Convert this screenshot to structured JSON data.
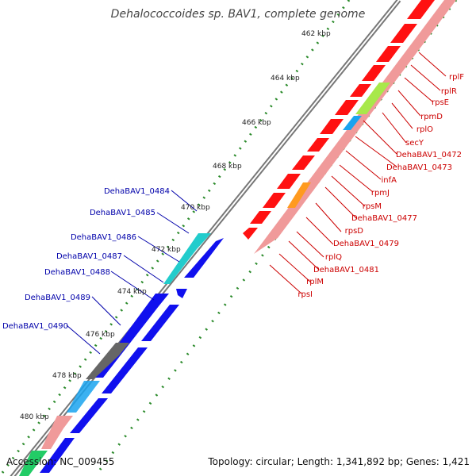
{
  "title": "Dehalococcoides sp. BAV1, complete genome",
  "footer": {
    "accession": "Accession: NC_009455",
    "summary": "Topology: circular; Length: 1,341,892 bp; Genes: 1,421"
  },
  "colors": {
    "ribosomal_protein": "#ff1111",
    "ribosomal_feature": "#f0a0a0",
    "secY": "#a8e84a",
    "hypothetical_blue": "#1aa3ef",
    "rpsD_feature": "#ff9a1f",
    "cds_blue": "#1010ee",
    "cds_cyan": "#22cccc",
    "cds_gray": "#666666",
    "label_red": "#cc0000",
    "label_blue": "#0000aa",
    "scale_green": "#2a8a2a",
    "backbone": "#888888"
  },
  "scale_ticks": [
    "462 kbp",
    "464 kbp",
    "466 kbp",
    "468 kbp",
    "470 kbp",
    "472 kbp",
    "474 kbp",
    "476 kbp",
    "478 kbp",
    "480 kbp"
  ],
  "right_labels": [
    "rplF",
    "rplR",
    "rpsE",
    "rpmD",
    "rplO",
    "secY",
    "DehaBAV1_0472",
    "DehaBAV1_0473",
    "infA",
    "rpmJ",
    "rpsM",
    "DehaBAV1_0477",
    "rpsD",
    "DehaBAV1_0479",
    "rplQ",
    "DehaBAV1_0481",
    "rplM",
    "rpsI"
  ],
  "left_labels": [
    "DehaBAV1_0484",
    "DehaBAV1_0485",
    "DehaBAV1_0486",
    "DehaBAV1_0487",
    "DehaBAV1_0488",
    "DehaBAV1_0489",
    "DehaBAV1_0490"
  ]
}
